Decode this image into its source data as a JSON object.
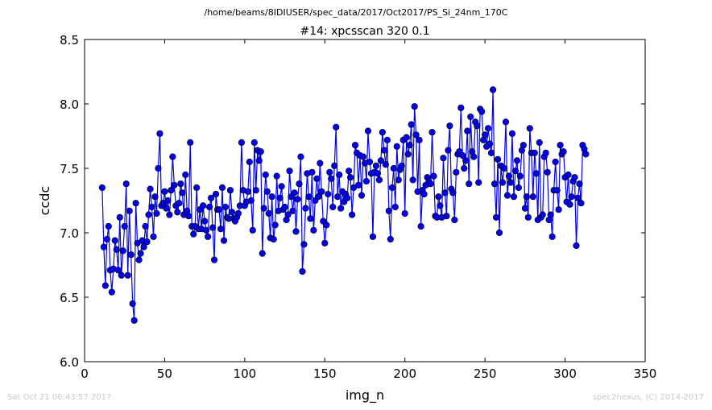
{
  "header": {
    "file_path": "/home/beams/8IDIUSER/spec_data/2017/Oct2017/PS_Si_24nm_170C"
  },
  "footer": {
    "timestamp": "Sat Oct 21 06:43:57 2017",
    "credit": "spec2nexus, (C) 2014-2017"
  },
  "chart_data": {
    "type": "line",
    "title": "#14: xpcsscan 320 0.1",
    "xlabel": "img_n",
    "ylabel": "ccdc",
    "xlim": [
      0,
      350
    ],
    "ylim": [
      6.0,
      8.5
    ],
    "xticks": [
      0,
      50,
      100,
      150,
      200,
      250,
      300,
      350
    ],
    "yticks": [
      6.0,
      6.5,
      7.0,
      7.5,
      8.0,
      8.5
    ],
    "xtick_labels": [
      "0",
      "50",
      "100",
      "150",
      "200",
      "250",
      "300",
      "350"
    ],
    "ytick_labels": [
      "6.0",
      "6.5",
      "7.0",
      "7.5",
      "8.0",
      "8.5"
    ],
    "grid": false,
    "marker": "circle",
    "color": "#0000ee",
    "series": [
      {
        "x_start": 11,
        "x_step": 1,
        "y": [
          7.35,
          6.89,
          6.59,
          6.95,
          7.05,
          6.71,
          6.54,
          6.72,
          6.94,
          6.87,
          6.71,
          7.12,
          6.67,
          6.86,
          7.05,
          7.38,
          6.67,
          7.17,
          6.83,
          6.45,
          6.32,
          7.23,
          6.92,
          6.79,
          6.84,
          6.94,
          6.89,
          7.05,
          6.93,
          7.14,
          7.34,
          7.2,
          6.97,
          7.28,
          7.15,
          7.5,
          7.77,
          7.21,
          7.23,
          7.32,
          7.19,
          7.25,
          7.14,
          7.33,
          7.59,
          7.37,
          7.21,
          7.16,
          7.23,
          7.38,
          7.31,
          7.14,
          7.45,
          7.17,
          7.13,
          7.7,
          7.05,
          6.99,
          7.05,
          7.35,
          7.03,
          7.18,
          7.03,
          7.21,
          7.09,
          7.02,
          6.97,
          7.2,
          7.27,
          7.04,
          6.79,
          7.3,
          7.18,
          7.18,
          7.03,
          7.35,
          6.94,
          7.2,
          7.12,
          7.11,
          7.33,
          7.16,
          7.11,
          7.09,
          7.12,
          7.15,
          7.21,
          7.7,
          7.33,
          7.21,
          7.24,
          7.32,
          7.55,
          7.25,
          7.02,
          7.7,
          7.33,
          7.64,
          7.56,
          7.63,
          6.84,
          7.19,
          7.45,
          7.32,
          7.15,
          6.96,
          7.28,
          6.95,
          7.06,
          7.44,
          7.17,
          7.27,
          7.36,
          7.18,
          7.2,
          7.1,
          7.14,
          7.48,
          7.28,
          7.17,
          7.31,
          7.01,
          7.26,
          7.38,
          7.59,
          6.7,
          6.91,
          7.19,
          7.46,
          7.28,
          7.11,
          7.47,
          7.02,
          7.25,
          7.42,
          7.28,
          7.54,
          7.32,
          7.09,
          6.92,
          7.06,
          7.3,
          7.47,
          7.42,
          7.2,
          7.52,
          7.82,
          7.28,
          7.45,
          7.19,
          7.32,
          7.24,
          7.3,
          7.27,
          7.48,
          7.43,
          7.14,
          7.35,
          7.68,
          7.62,
          7.37,
          7.6,
          7.29,
          7.59,
          7.54,
          7.4,
          7.79,
          7.55,
          7.46,
          6.97,
          7.47,
          7.52,
          7.46,
          7.41,
          7.56,
          7.78,
          7.64,
          7.53,
          7.72,
          7.17,
          6.95,
          7.35,
          7.5,
          7.2,
          7.67,
          7.41,
          7.49,
          7.52,
          7.72,
          7.15,
          7.74,
          7.61,
          7.68,
          7.84,
          7.41,
          7.98,
          7.76,
          7.32,
          7.72,
          7.05,
          7.33,
          7.3,
          7.37,
          7.43,
          7.4,
          7.38,
          7.78,
          7.44,
          7.13,
          7.12,
          7.28,
          7.21,
          7.12,
          7.58,
          7.31,
          7.13,
          7.64,
          7.83,
          7.34,
          7.31,
          7.1,
          7.47,
          7.61,
          7.63,
          7.97,
          7.6,
          7.5,
          7.56,
          7.79,
          7.38,
          7.9,
          7.63,
          7.59,
          7.86,
          7.83,
          7.39,
          7.96,
          7.94,
          7.72,
          7.76,
          7.67,
          7.81,
          7.69,
          7.62,
          8.11,
          7.38,
          7.12,
          7.57,
          7.0,
          7.52,
          7.39,
          7.5,
          7.86,
          7.29,
          7.44,
          7.39,
          7.77,
          7.28,
          7.48,
          7.56,
          7.35,
          7.44,
          7.64,
          7.68,
          7.19,
          7.28,
          7.12,
          7.81,
          7.62,
          7.28,
          7.62,
          7.46,
          7.1,
          7.7,
          7.12,
          7.14,
          7.59,
          7.62,
          7.47,
          7.1,
          7.14,
          6.97,
          7.33,
          7.55,
          7.33,
          7.18,
          7.68,
          7.61,
          7.63,
          7.43,
          7.24,
          7.45,
          7.22,
          7.28,
          7.4,
          7.43,
          6.9,
          7.27,
          7.38,
          7.23,
          7.68,
          7.65,
          7.61
        ]
      }
    ]
  }
}
